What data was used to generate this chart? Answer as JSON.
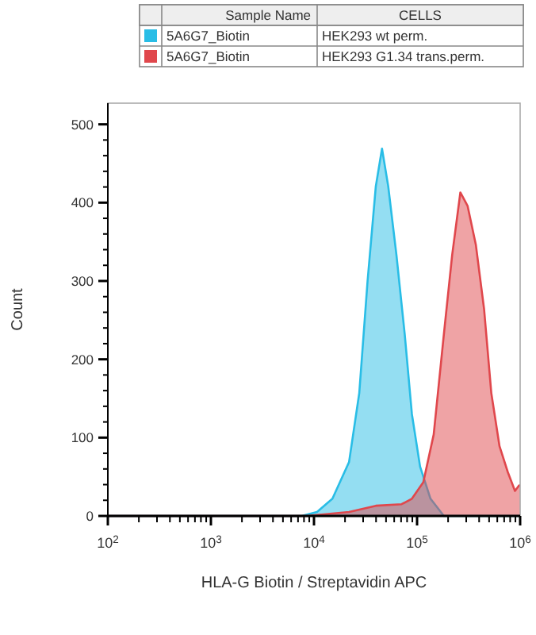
{
  "chart_data": {
    "type": "area",
    "xlabel": "HLA-G Biotin / Streptavidin APC",
    "ylabel": "Count",
    "log": "x",
    "legend": "top",
    "legend_title": "Sample Name",
    "annotations": [
      "CELLS",
      "HEK293 wt perm.",
      "HEK293 G1.34 trans.perm."
    ],
    "xlim": [
      100,
      1000000
    ],
    "ylim": [
      0,
      527
    ],
    "xticks": [
      {
        "value": 100,
        "label": "10$^{2}$"
      },
      {
        "value": 200,
        "label": null
      },
      {
        "value": 300,
        "label": null
      },
      {
        "value": 400,
        "label": null
      },
      {
        "value": 500,
        "label": null
      },
      {
        "value": 600,
        "label": null
      },
      {
        "value": 700,
        "label": null
      },
      {
        "value": 800,
        "label": null
      },
      {
        "value": 900,
        "label": null
      },
      {
        "value": 1000,
        "label": "10$^{3}$"
      },
      {
        "value": 2000,
        "label": null
      },
      {
        "value": 3000,
        "label": null
      },
      {
        "value": 4000,
        "label": null
      },
      {
        "value": 5000,
        "label": null
      },
      {
        "value": 6000,
        "label": null
      },
      {
        "value": 7000,
        "label": null
      },
      {
        "value": 8000,
        "label": null
      },
      {
        "value": 9000,
        "label": null
      },
      {
        "value": 10000,
        "label": "10$^{4}$"
      },
      {
        "value": 20000,
        "label": null
      },
      {
        "value": 30000,
        "label": null
      },
      {
        "value": 40000,
        "label": null
      },
      {
        "value": 50000,
        "label": null
      },
      {
        "value": 60000,
        "label": null
      },
      {
        "value": 70000,
        "label": null
      },
      {
        "value": 80000,
        "label": null
      },
      {
        "value": 90000,
        "label": null
      },
      {
        "value": 100000,
        "label": "10$^{5}$"
      },
      {
        "value": 200000,
        "label": null
      },
      {
        "value": 300000,
        "label": null
      },
      {
        "value": 400000,
        "label": null
      },
      {
        "value": 500000,
        "label": null
      },
      {
        "value": 600000,
        "label": null
      },
      {
        "value": 700000,
        "label": null
      },
      {
        "value": 800000,
        "label": null
      },
      {
        "value": 900000,
        "label": null
      },
      {
        "value": 1000000,
        "label": "10$^{6}$"
      }
    ],
    "yticks": [
      0,
      {
        "value": 20,
        "label": null
      },
      {
        "value": 40,
        "label": null
      },
      {
        "value": 60,
        "label": null
      },
      {
        "value": 80,
        "label": null
      },
      100,
      {
        "value": 120,
        "label": null
      },
      {
        "value": 140,
        "label": null
      },
      {
        "value": 160,
        "label": null
      },
      {
        "value": 180,
        "label": null
      },
      200,
      {
        "value": 220,
        "label": null
      },
      {
        "value": 240,
        "label": null
      },
      {
        "value": 260,
        "label": null
      },
      {
        "value": 280,
        "label": null
      },
      300,
      {
        "value": 320,
        "label": null
      },
      {
        "value": 340,
        "label": null
      },
      {
        "value": 360,
        "label": null
      },
      {
        "value": 380,
        "label": null
      },
      400,
      {
        "value": 420,
        "label": null
      },
      {
        "value": 440,
        "label": null
      },
      {
        "value": 460,
        "label": null
      },
      {
        "value": 480,
        "label": null
      },
      500
    ],
    "series": [
      {
        "name": "5A6G7_Biotin",
        "color": "#29bde6",
        "x": [
          100,
          7600,
          10700,
          15100,
          21900,
          27500,
          33100,
          39800,
          45700,
          52500,
          63100,
          75900,
          89100,
          107000,
          135000,
          182000,
          1000000
        ],
        "values": [
          0,
          0,
          5,
          22,
          69,
          157,
          300,
          421,
          469,
          421,
          333,
          232,
          130,
          63,
          22,
          0,
          0
        ]
      },
      {
        "name": "5A6G7_Biotin",
        "color": "#e0474c",
        "x": [
          100,
          8500,
          21900,
          39800,
          70800,
          89100,
          115000,
          145000,
          182000,
          219000,
          263000,
          309000,
          372000,
          447000,
          525000,
          631000,
          759000,
          891000,
          977000,
          1000000
        ],
        "values": [
          0,
          0,
          5,
          13,
          15,
          22,
          43,
          104,
          232,
          333,
          413,
          396,
          346,
          264,
          157,
          89,
          56,
          32,
          39,
          39
        ]
      }
    ]
  }
}
